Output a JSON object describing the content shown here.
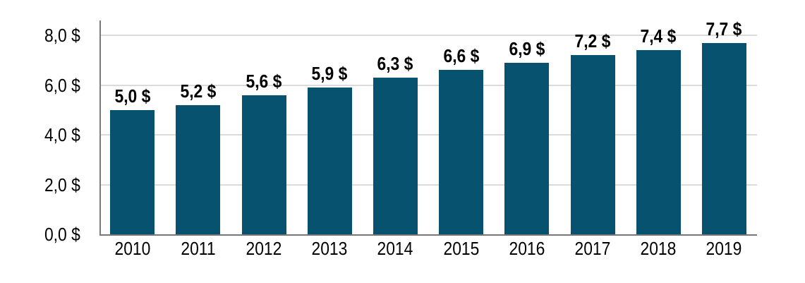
{
  "chart_data": {
    "type": "bar",
    "title": "",
    "xlabel": "",
    "ylabel": "",
    "categories": [
      "2010",
      "2011",
      "2012",
      "2013",
      "2014",
      "2015",
      "2016",
      "2017",
      "2018",
      "2019"
    ],
    "values": [
      5.0,
      5.2,
      5.6,
      5.9,
      6.3,
      6.6,
      6.9,
      7.2,
      7.4,
      7.7
    ],
    "data_labels": [
      "5,0 $",
      "5,2 $",
      "5,6 $",
      "5,9 $",
      "6,3 $",
      "6,6 $",
      "6,9 $",
      "7,2 $",
      "7,4 $",
      "7,7 $"
    ],
    "y_ticks": [
      {
        "value": 0,
        "label": "0,0 $"
      },
      {
        "value": 2,
        "label": "2,0 $"
      },
      {
        "value": 4,
        "label": "4,0 $"
      },
      {
        "value": 6,
        "label": "6,0 $"
      },
      {
        "value": 8,
        "label": "8,0 $"
      }
    ],
    "ylim": [
      0,
      8.6
    ],
    "grid": true,
    "legend_position": "none",
    "currency_suffix": "$",
    "decimal_separator": ","
  },
  "colors": {
    "bar": "#07536F",
    "gridline": "#DBDBDB",
    "axis_line": "#787878",
    "label_text": "#000000",
    "background": "#FFFFFF"
  }
}
